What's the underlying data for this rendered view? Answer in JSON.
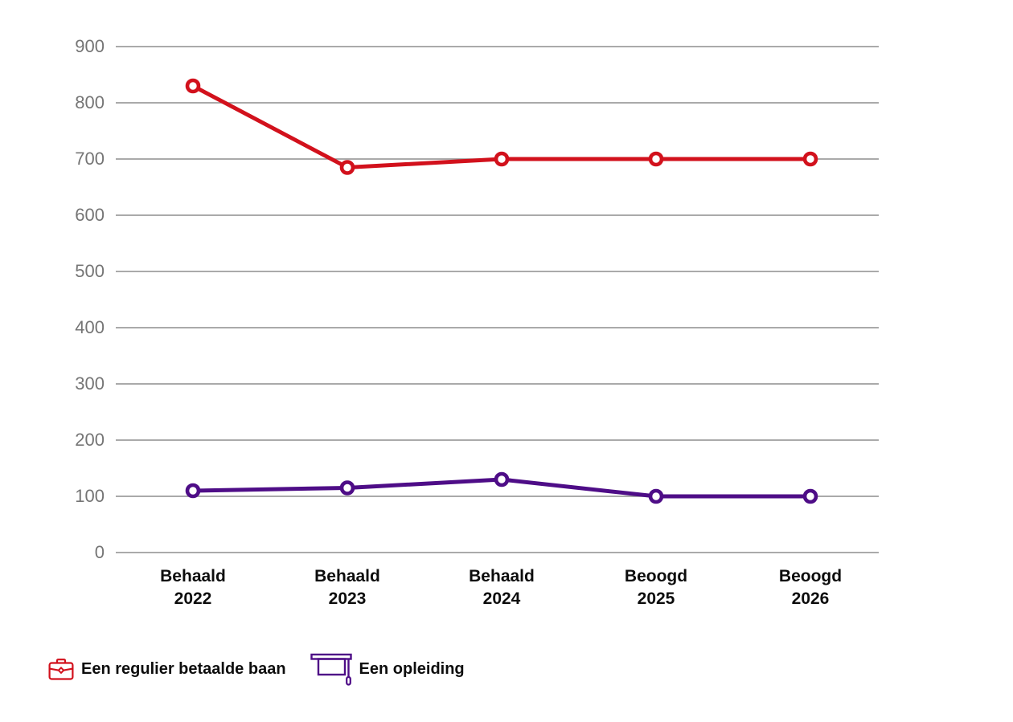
{
  "chart_data": {
    "type": "line",
    "title": "",
    "xlabel": "",
    "ylabel": "",
    "categories": [
      [
        "Behaald",
        "2022"
      ],
      [
        "Behaald",
        "2023"
      ],
      [
        "Behaald",
        "2024"
      ],
      [
        "Beoogd",
        "2025"
      ],
      [
        "Beoogd",
        "2026"
      ]
    ],
    "series": [
      {
        "name": "Een regulier betaalde baan",
        "color": "#d2111c",
        "marker": "open-circle",
        "values": [
          830,
          685,
          700,
          700,
          700
        ]
      },
      {
        "name": "Een opleiding",
        "color": "#4e0d87",
        "marker": "open-circle",
        "values": [
          110,
          115,
          130,
          100,
          100
        ]
      }
    ],
    "ylim": [
      0,
      900
    ],
    "yticks": [
      0,
      100,
      200,
      300,
      400,
      500,
      600,
      700,
      800,
      900
    ],
    "grid": true,
    "legend_position": "bottom-left"
  },
  "colors": {
    "background": "#ffffff",
    "grid": "#8e8e8e",
    "tick_label": "#757575",
    "category_label": "#0d0d0d",
    "series_red": "#d2111c",
    "series_purple": "#4e0d87"
  },
  "legend": {
    "items": [
      {
        "label": "Een regulier betaalde baan",
        "icon": "briefcase-icon",
        "color": "#d2111c"
      },
      {
        "label": "Een opleiding",
        "icon": "graduation-cap-icon",
        "color": "#4e0d87"
      }
    ]
  }
}
